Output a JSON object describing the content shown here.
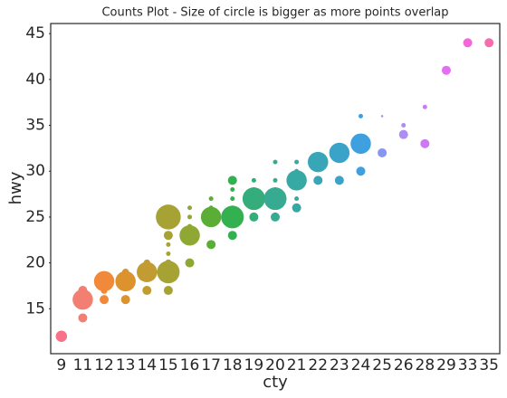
{
  "chart_data": {
    "type": "strip",
    "title": "Counts Plot - Size of circle is bigger as more points overlap",
    "x_label": "cty",
    "y_label": "hwy",
    "categories": [
      "9",
      "11",
      "12",
      "13",
      "14",
      "15",
      "16",
      "17",
      "18",
      "19",
      "20",
      "21",
      "22",
      "23",
      "24",
      "25",
      "26",
      "28",
      "29",
      "33",
      "35"
    ],
    "series": [
      {
        "color": "#f77189",
        "values": [
          12
        ],
        "sizes": [
          5
        ]
      },
      {
        "color": "#f37f72",
        "values": [
          16,
          17,
          14
        ],
        "sizes": [
          9,
          4,
          4
        ]
      },
      {
        "color": "#f08a3a",
        "values": [
          18,
          16,
          17
        ],
        "sizes": [
          9,
          4,
          3
        ]
      },
      {
        "color": "#dc922d",
        "values": [
          18,
          16,
          19
        ],
        "sizes": [
          9,
          4,
          3
        ]
      },
      {
        "color": "#c29c32",
        "values": [
          19,
          17,
          20
        ],
        "sizes": [
          9,
          4,
          3
        ]
      },
      {
        "color": "#a6a233",
        "values": [
          25,
          19,
          23,
          17,
          20,
          21,
          22
        ],
        "sizes": [
          11,
          10,
          4,
          4,
          3,
          2,
          2
        ]
      },
      {
        "color": "#8fa833",
        "values": [
          23,
          20,
          24,
          25,
          26
        ],
        "sizes": [
          9,
          4,
          2,
          2,
          2
        ]
      },
      {
        "color": "#5aad35",
        "values": [
          25,
          22,
          26,
          27
        ],
        "sizes": [
          9,
          4,
          2,
          2
        ]
      },
      {
        "color": "#33b04f",
        "values": [
          25,
          29,
          23,
          28,
          27,
          26
        ],
        "sizes": [
          10,
          4,
          4,
          2,
          2,
          2
        ]
      },
      {
        "color": "#35ad7a",
        "values": [
          27,
          25,
          29,
          28
        ],
        "sizes": [
          10,
          4,
          2,
          2
        ]
      },
      {
        "color": "#36ab92",
        "values": [
          27,
          25,
          31,
          29,
          28
        ],
        "sizes": [
          10,
          4,
          2,
          2,
          2
        ]
      },
      {
        "color": "#37a9a5",
        "values": [
          29,
          26,
          31,
          27,
          30
        ],
        "sizes": [
          9,
          4,
          2,
          2,
          2
        ]
      },
      {
        "color": "#38a6b6",
        "values": [
          31,
          29
        ],
        "sizes": [
          9,
          4
        ]
      },
      {
        "color": "#3aa3c7",
        "values": [
          32,
          29
        ],
        "sizes": [
          9,
          4
        ]
      },
      {
        "color": "#3ea0df",
        "values": [
          33,
          30,
          36
        ],
        "sizes": [
          9,
          4,
          2
        ]
      },
      {
        "color": "#8996f1",
        "values": [
          32,
          36
        ],
        "sizes": [
          4,
          1
        ]
      },
      {
        "color": "#ad8cf3",
        "values": [
          34,
          35
        ],
        "sizes": [
          4,
          2
        ]
      },
      {
        "color": "#cc7af4",
        "values": [
          33,
          37
        ],
        "sizes": [
          4,
          2
        ]
      },
      {
        "color": "#e56ef4",
        "values": [
          41
        ],
        "sizes": [
          4
        ]
      },
      {
        "color": "#f566d6",
        "values": [
          44
        ],
        "sizes": [
          4
        ]
      },
      {
        "color": "#f66cac",
        "values": [
          44
        ],
        "sizes": [
          4
        ]
      }
    ],
    "ylim": [
      10.1,
      46.1
    ],
    "yticks": [
      15,
      20,
      25,
      30,
      35,
      40,
      45
    ]
  }
}
